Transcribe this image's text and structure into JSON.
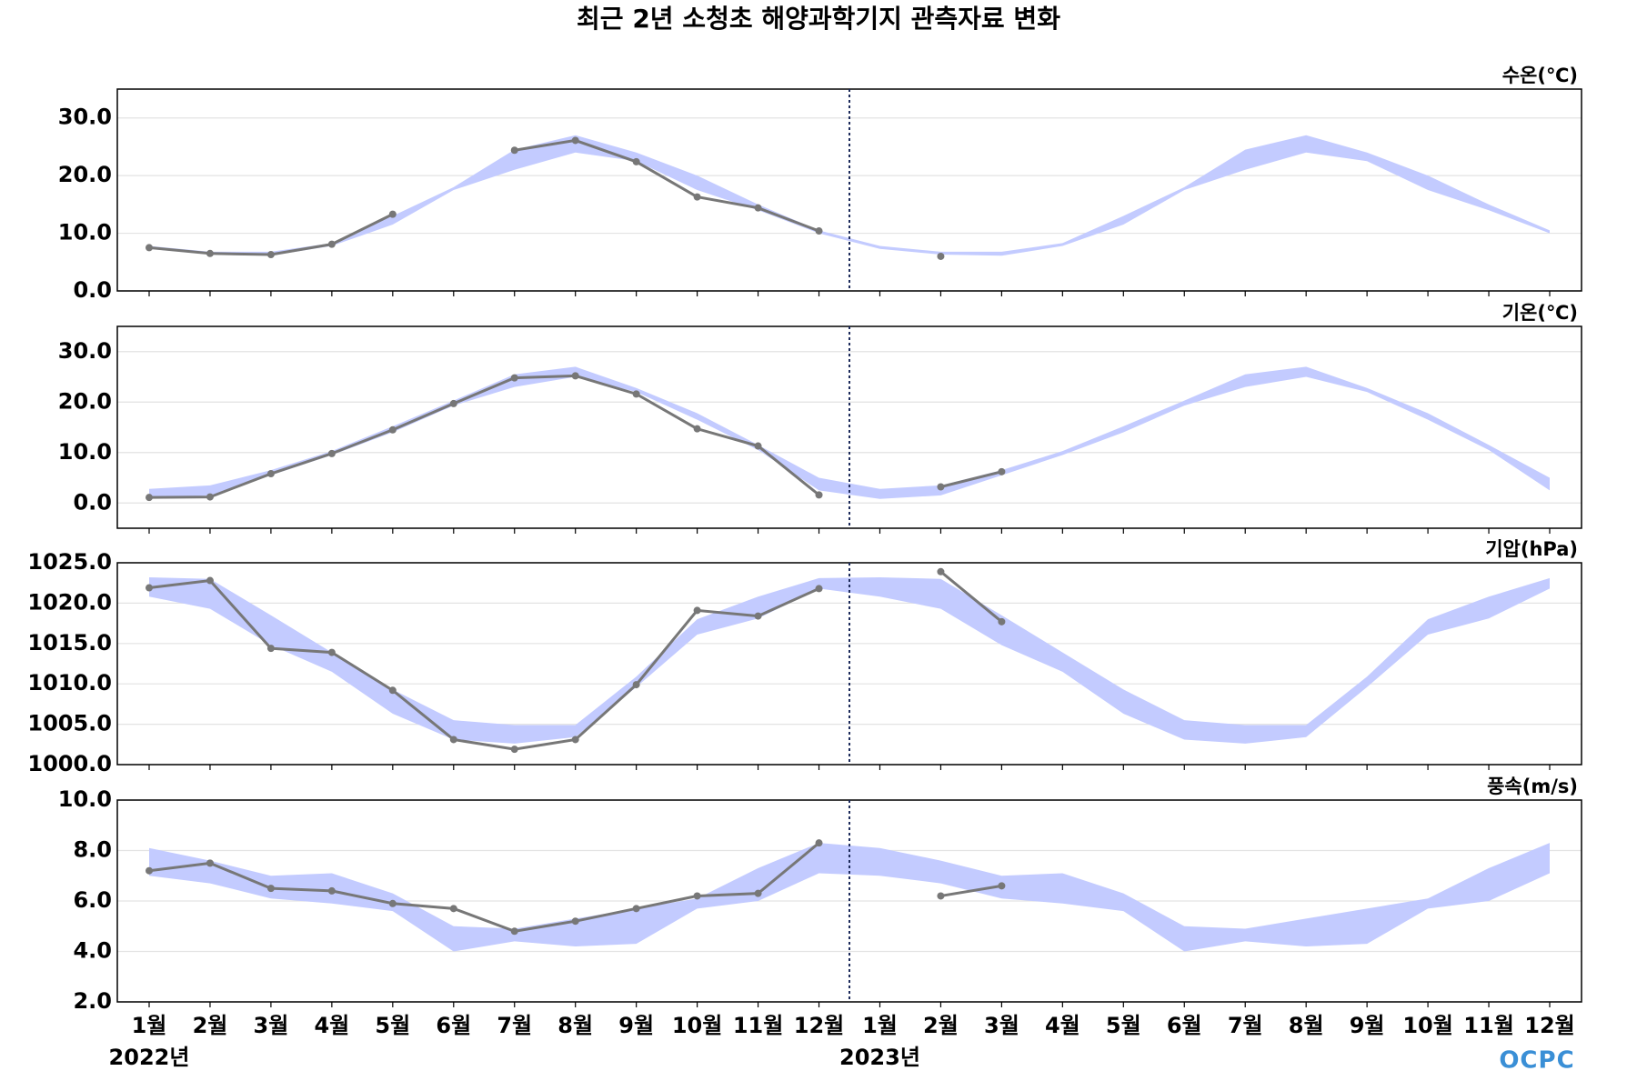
{
  "title": "최근 2년 소청초 해양과학기지 관측자료 변화",
  "x_axis": {
    "categories": [
      "1월",
      "2월",
      "3월",
      "4월",
      "5월",
      "6월",
      "7월",
      "8월",
      "9월",
      "10월",
      "11월",
      "12월",
      "1월",
      "2월",
      "3월",
      "4월",
      "5월",
      "6월",
      "7월",
      "8월",
      "9월",
      "10월",
      "11월",
      "12월"
    ],
    "years": [
      "2022년",
      "2023년"
    ]
  },
  "logo": "OCPC",
  "chart_data": [
    {
      "type": "line",
      "unit": "수온(℃)",
      "ylim": [
        0,
        35
      ],
      "grid": true,
      "color": "#777777",
      "yticks": [
        {
          "value": 0,
          "label": "0.0"
        },
        {
          "value": 10,
          "label": "10.0"
        },
        {
          "value": 20,
          "label": "20.0"
        },
        {
          "value": 30,
          "label": "30.0"
        }
      ],
      "values": [
        7.5,
        6.5,
        6.3,
        8.1,
        13.3,
        null,
        24.4,
        26.1,
        22.4,
        16.3,
        14.4,
        10.4,
        null,
        6.0,
        null,
        null,
        null,
        null,
        null,
        null,
        null,
        null,
        null,
        null
      ],
      "band": {
        "color": "#c3cbff",
        "low": [
          7.3,
          6.3,
          6.1,
          7.8,
          11.5,
          17.5,
          21,
          24,
          22.5,
          17.5,
          14,
          10,
          7.3,
          6.3,
          6.1,
          7.8,
          11.5,
          17.5,
          21,
          24,
          22.5,
          17.5,
          14,
          10
        ],
        "high": [
          7.8,
          6.8,
          6.8,
          8.3,
          13,
          18,
          24.5,
          27,
          24,
          20,
          15,
          10.5,
          7.8,
          6.8,
          6.8,
          8.3,
          13,
          18,
          24.5,
          27,
          24,
          20,
          15,
          10.5
        ]
      }
    },
    {
      "type": "line",
      "unit": "기온(℃)",
      "ylim": [
        -5,
        35
      ],
      "grid": true,
      "color": "#777777",
      "yticks": [
        {
          "value": 0,
          "label": "0.0"
        },
        {
          "value": 10,
          "label": "10.0"
        },
        {
          "value": 20,
          "label": "20.0"
        },
        {
          "value": 30,
          "label": "30.0"
        }
      ],
      "values": [
        1.1,
        1.2,
        5.8,
        9.8,
        14.5,
        19.7,
        24.8,
        25.2,
        21.6,
        14.7,
        11.3,
        1.6,
        null,
        3.2,
        6.2,
        null,
        null,
        null,
        null,
        null,
        null,
        null,
        null,
        null
      ],
      "band": {
        "color": "#c3cbff",
        "low": [
          0.8,
          1.5,
          5.5,
          9.5,
          14,
          19.3,
          23,
          25,
          22,
          16.5,
          10.5,
          2.5,
          0.8,
          1.5,
          5.5,
          9.5,
          14,
          19.3,
          23,
          25,
          22,
          16.5,
          10.5,
          2.5
        ],
        "high": [
          2.8,
          3.5,
          6.5,
          10.3,
          15.2,
          20.3,
          25.5,
          27,
          22.8,
          17.8,
          11.5,
          5,
          2.8,
          3.5,
          6.5,
          10.3,
          15.2,
          20.3,
          25.5,
          27,
          22.8,
          17.8,
          11.5,
          5
        ]
      }
    },
    {
      "type": "line",
      "unit": "기압(hPa)",
      "ylim": [
        1000,
        1025
      ],
      "grid": true,
      "color": "#777777",
      "yticks": [
        {
          "value": 1000,
          "label": "1000.0"
        },
        {
          "value": 1005,
          "label": "1005.0"
        },
        {
          "value": 1010,
          "label": "1010.0"
        },
        {
          "value": 1015,
          "label": "1015.0"
        },
        {
          "value": 1020,
          "label": "1020.0"
        },
        {
          "value": 1025,
          "label": "1025.0"
        }
      ],
      "values": [
        1021.9,
        1022.8,
        1014.4,
        1013.9,
        1009.2,
        1003.1,
        1001.9,
        1003.1,
        1009.9,
        1019.1,
        1018.4,
        1021.8,
        null,
        1023.9,
        1017.7,
        null,
        null,
        null,
        null,
        null,
        null,
        null,
        null,
        null
      ],
      "band": {
        "color": "#c3cbff",
        "low": [
          1020.8,
          1019.3,
          1014.8,
          1011.5,
          1006.3,
          1003.1,
          1002.6,
          1003.4,
          1009.6,
          1016.1,
          1018.1,
          1021.8,
          1020.8,
          1019.3,
          1014.8,
          1011.5,
          1006.3,
          1003.1,
          1002.6,
          1003.4,
          1009.6,
          1016.1,
          1018.1,
          1021.8
        ],
        "high": [
          1023.2,
          1023.0,
          1018.5,
          1013.9,
          1009.3,
          1005.5,
          1004.9,
          1004.9,
          1010.9,
          1018.0,
          1020.8,
          1023.1,
          1023.2,
          1023.0,
          1018.5,
          1013.9,
          1009.3,
          1005.5,
          1004.9,
          1004.9,
          1010.9,
          1018.0,
          1020.8,
          1023.1
        ]
      }
    },
    {
      "type": "line",
      "unit": "풍속(m/s)",
      "ylim": [
        2,
        10
      ],
      "grid": true,
      "color": "#777777",
      "yticks": [
        {
          "value": 2,
          "label": "2.0"
        },
        {
          "value": 4,
          "label": "4.0"
        },
        {
          "value": 6,
          "label": "6.0"
        },
        {
          "value": 8,
          "label": "8.0"
        },
        {
          "value": 10,
          "label": "10.0"
        }
      ],
      "values": [
        7.2,
        7.5,
        6.5,
        6.4,
        5.9,
        5.7,
        4.8,
        5.2,
        5.7,
        6.2,
        6.3,
        8.3,
        null,
        6.2,
        6.6,
        null,
        null,
        null,
        null,
        null,
        null,
        null,
        null,
        null
      ],
      "band": {
        "color": "#c3cbff",
        "low": [
          7.0,
          6.7,
          6.1,
          5.9,
          5.6,
          4.0,
          4.4,
          4.2,
          4.3,
          5.7,
          6.0,
          7.1,
          7.0,
          6.7,
          6.1,
          5.9,
          5.6,
          4.0,
          4.4,
          4.2,
          4.3,
          5.7,
          6.0,
          7.1
        ],
        "high": [
          8.1,
          7.6,
          7.0,
          7.1,
          6.3,
          5.0,
          4.9,
          5.3,
          5.7,
          6.1,
          7.3,
          8.3,
          8.1,
          7.6,
          7.0,
          7.1,
          6.3,
          5.0,
          4.9,
          5.3,
          5.7,
          6.1,
          7.3,
          8.3
        ]
      }
    }
  ]
}
